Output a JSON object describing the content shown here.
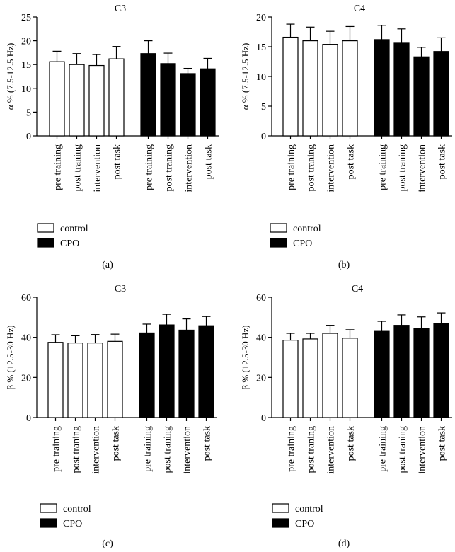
{
  "figure": {
    "legend_control": "control",
    "legend_cpo": "CPO",
    "colors": {
      "control_fill": "#ffffff",
      "cpo_fill": "#000000",
      "stroke": "#000000"
    }
  },
  "chart_data": [
    {
      "type": "bar",
      "panel_label": "(a)",
      "title": "C3",
      "ylabel": "α % (7.5-12.5 Hz)",
      "ylim": [
        0,
        25
      ],
      "yticks": [
        0,
        5,
        10,
        15,
        20,
        25
      ],
      "categories": [
        "pre training",
        "post traning",
        "intervention",
        "post task"
      ],
      "series": [
        {
          "name": "control",
          "values": [
            15.6,
            15.0,
            14.8,
            16.2
          ],
          "errors": [
            2.2,
            2.3,
            2.3,
            2.6
          ]
        },
        {
          "name": "CPO",
          "values": [
            17.3,
            15.2,
            13.1,
            14.1
          ],
          "errors": [
            2.7,
            2.2,
            1.1,
            2.2
          ]
        }
      ]
    },
    {
      "type": "bar",
      "panel_label": "(b)",
      "title": "C4",
      "ylabel": "α % (7.5-12.5 Hz)",
      "ylim": [
        0,
        20
      ],
      "yticks": [
        0,
        5,
        10,
        15,
        20
      ],
      "categories": [
        "pre training",
        "post traning",
        "intervention",
        "post task"
      ],
      "series": [
        {
          "name": "control",
          "values": [
            16.6,
            16.0,
            15.4,
            16.0
          ],
          "errors": [
            2.2,
            2.3,
            2.2,
            2.4
          ]
        },
        {
          "name": "CPO",
          "values": [
            16.2,
            15.6,
            13.3,
            14.2
          ],
          "errors": [
            2.4,
            2.4,
            1.6,
            2.3
          ]
        }
      ]
    },
    {
      "type": "bar",
      "panel_label": "(c)",
      "title": "C3",
      "ylabel": "β % (12.5-30 Hz)",
      "ylim": [
        0,
        60
      ],
      "yticks": [
        0,
        20,
        40,
        60
      ],
      "categories": [
        "pre training",
        "post traning",
        "intervention",
        "post task"
      ],
      "series": [
        {
          "name": "control",
          "values": [
            37.5,
            37.2,
            37.2,
            38.0
          ],
          "errors": [
            3.8,
            3.6,
            4.2,
            3.6
          ]
        },
        {
          "name": "CPO",
          "values": [
            42.2,
            46.2,
            43.6,
            45.8
          ],
          "errors": [
            4.4,
            5.3,
            5.6,
            4.6
          ]
        }
      ]
    },
    {
      "type": "bar",
      "panel_label": "(d)",
      "title": "C4",
      "ylabel": "β % (12.5-30 Hz)",
      "ylim": [
        0,
        60
      ],
      "yticks": [
        0,
        20,
        40,
        60
      ],
      "categories": [
        "pre training",
        "post traning",
        "intervention",
        "post task"
      ],
      "series": [
        {
          "name": "control",
          "values": [
            38.6,
            39.2,
            42.0,
            39.6
          ],
          "errors": [
            3.4,
            2.8,
            4.0,
            4.2
          ]
        },
        {
          "name": "CPO",
          "values": [
            43.0,
            46.0,
            44.6,
            47.0
          ],
          "errors": [
            5.0,
            5.2,
            5.6,
            5.2
          ]
        }
      ]
    }
  ]
}
